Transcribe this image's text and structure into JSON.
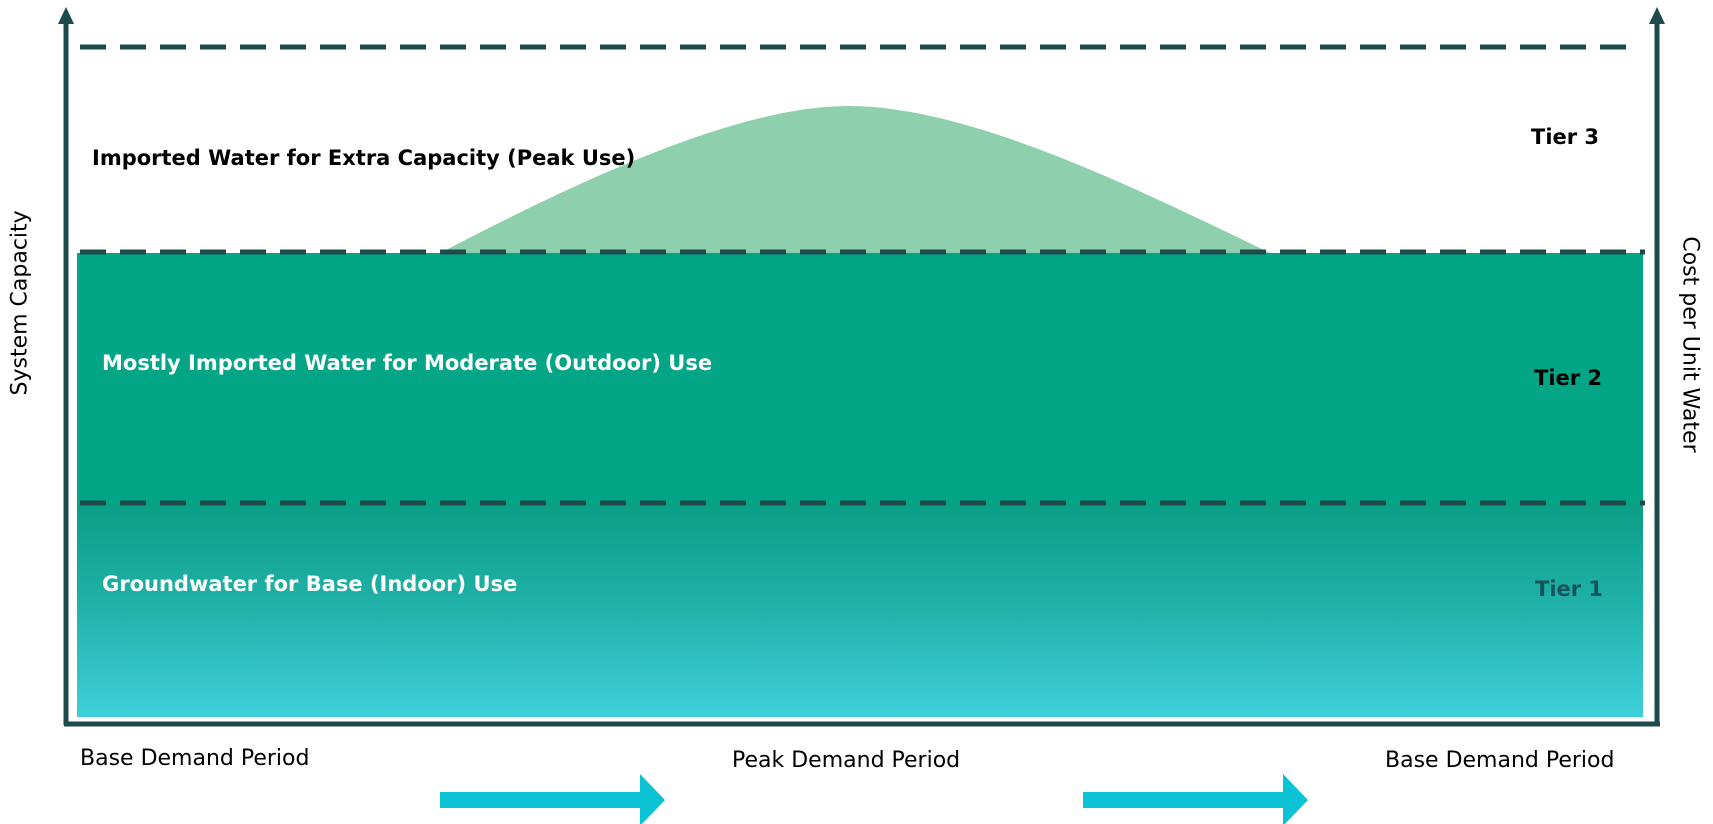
{
  "axes": {
    "left_label": "System Capacity",
    "right_label": "Cost per Unit Water",
    "x_labels": {
      "start": "Base Demand Period",
      "middle": "Peak Demand Period",
      "end": "Base Demand Period"
    }
  },
  "bands": {
    "tier3": {
      "label": "Imported Water for Extra Capacity (Peak Use)",
      "tier": "Tier 3"
    },
    "tier2": {
      "label": "Mostly Imported Water for Moderate (Outdoor) Use",
      "tier": "Tier 2"
    },
    "tier1": {
      "label": "Groundwater for Base (Indoor) Use",
      "tier": "Tier 1"
    }
  },
  "colors": {
    "axis": "#1d4a4b",
    "tier2_fill": "#02a586",
    "tier1_top": "#0b9e86",
    "tier1_bottom": "#3ecdd9",
    "peak_fill": "#8ecfae",
    "arrow": "#0cc3d5",
    "tier1_label": "#14545a"
  }
}
